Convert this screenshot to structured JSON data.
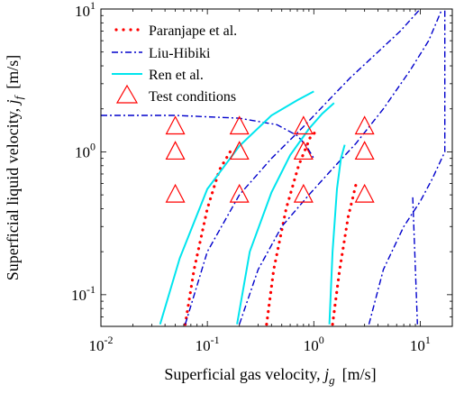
{
  "chart_data": {
    "type": "scatter",
    "x_scale": "log",
    "y_scale": "log",
    "xlim": [
      0.01,
      20
    ],
    "ylim": [
      0.06,
      10
    ],
    "grid": false,
    "legend_position": "top-left",
    "x_ticks": [
      {
        "value": 0.01,
        "base": "10",
        "exp": "-2"
      },
      {
        "value": 0.1,
        "base": "10",
        "exp": "-1"
      },
      {
        "value": 1,
        "base": "10",
        "exp": "0"
      },
      {
        "value": 10,
        "base": "10",
        "exp": "1"
      }
    ],
    "y_ticks": [
      {
        "value": 0.1,
        "base": "10",
        "exp": "-1"
      },
      {
        "value": 1,
        "base": "10",
        "exp": "0"
      },
      {
        "value": 10,
        "base": "10",
        "exp": "1"
      }
    ],
    "xlabel": {
      "text": "Superficial gas velocity, ",
      "sym": "j",
      "sub": "g",
      "unit": "[m/s]"
    },
    "ylabel": {
      "text": "Superficial liquid velocity, ",
      "sym": "j",
      "sub": "f",
      "unit": "[m/s]"
    },
    "series": [
      {
        "name": "Paranjape et al.",
        "style": "dotted",
        "color": "#ff0000",
        "lines": [
          [
            [
              0.062,
              0.062
            ],
            [
              0.075,
              0.15
            ],
            [
              0.1,
              0.4
            ],
            [
              0.13,
              0.75
            ],
            [
              0.17,
              1.05
            ]
          ],
          [
            [
              0.36,
              0.062
            ],
            [
              0.42,
              0.15
            ],
            [
              0.55,
              0.4
            ],
            [
              0.72,
              0.8
            ],
            [
              0.92,
              1.25
            ],
            [
              1.1,
              1.45
            ]
          ],
          [
            [
              1.5,
              0.062
            ],
            [
              1.75,
              0.15
            ],
            [
              2.1,
              0.35
            ],
            [
              2.5,
              0.6
            ]
          ]
        ]
      },
      {
        "name": "Liu-Hibiki",
        "style": "dashdot",
        "color": "#0000cc",
        "lines": [
          [
            [
              0.01,
              1.8
            ],
            [
              0.05,
              1.8
            ],
            [
              0.2,
              1.72
            ],
            [
              0.45,
              1.55
            ],
            [
              0.7,
              1.3
            ],
            [
              0.85,
              1.1
            ],
            [
              1.0,
              0.9
            ]
          ],
          [
            [
              0.062,
              0.062
            ],
            [
              0.1,
              0.2
            ],
            [
              0.2,
              0.5
            ],
            [
              0.4,
              0.9
            ],
            [
              0.8,
              1.5
            ],
            [
              1.3,
              2.2
            ],
            [
              2.2,
              3.3
            ],
            [
              4.0,
              5.0
            ],
            [
              6.5,
              7.0
            ],
            [
              10,
              10
            ]
          ],
          [
            [
              0.2,
              0.062
            ],
            [
              0.3,
              0.15
            ],
            [
              0.5,
              0.3
            ],
            [
              0.9,
              0.5
            ],
            [
              1.4,
              0.72
            ],
            [
              2.5,
              1.15
            ],
            [
              4.5,
              2.0
            ],
            [
              8.0,
              3.7
            ],
            [
              12,
              6.0
            ],
            [
              16,
              10
            ]
          ],
          [
            [
              3.3,
              0.062
            ],
            [
              4.5,
              0.15
            ],
            [
              7.0,
              0.3
            ],
            [
              10,
              0.45
            ],
            [
              13,
              0.65
            ],
            [
              17,
              1.0
            ],
            [
              17,
              10
            ]
          ],
          [
            [
              8.5,
              0.48
            ],
            [
              9.4,
              0.062
            ]
          ]
        ]
      },
      {
        "name": "Ren et al.",
        "style": "solid",
        "color": "#00e5ee",
        "lines": [
          [
            [
              0.036,
              0.062
            ],
            [
              0.055,
              0.18
            ],
            [
              0.1,
              0.55
            ],
            [
              0.2,
              1.1
            ],
            [
              0.4,
              1.8
            ],
            [
              0.7,
              2.3
            ],
            [
              1.0,
              2.65
            ]
          ],
          [
            [
              0.19,
              0.062
            ],
            [
              0.25,
              0.2
            ],
            [
              0.4,
              0.52
            ],
            [
              0.6,
              0.95
            ],
            [
              0.9,
              1.45
            ],
            [
              1.2,
              1.85
            ],
            [
              1.55,
              2.2
            ]
          ],
          [
            [
              1.4,
              0.062
            ],
            [
              1.5,
              0.2
            ],
            [
              1.65,
              0.55
            ],
            [
              1.8,
              0.9
            ],
            [
              1.95,
              1.12
            ]
          ]
        ]
      },
      {
        "name": "Test conditions",
        "style": "triangle",
        "color": "#ff0000",
        "points": [
          [
            0.05,
            0.5
          ],
          [
            0.05,
            1.0
          ],
          [
            0.05,
            1.5
          ],
          [
            0.2,
            0.5
          ],
          [
            0.2,
            1.0
          ],
          [
            0.2,
            1.5
          ],
          [
            0.8,
            0.5
          ],
          [
            0.8,
            1.0
          ],
          [
            0.8,
            1.5
          ],
          [
            3.0,
            0.5
          ],
          [
            3.0,
            1.0
          ],
          [
            3.0,
            1.5
          ]
        ]
      }
    ]
  }
}
